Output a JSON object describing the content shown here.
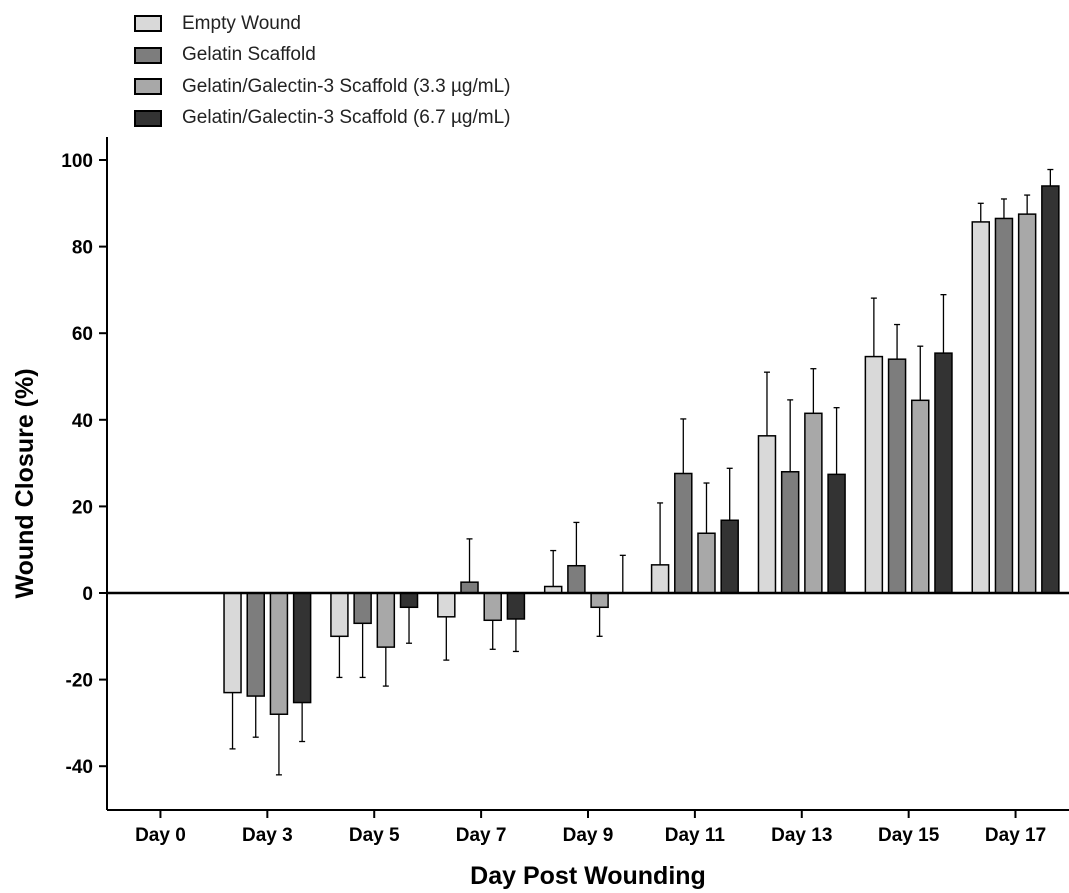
{
  "chart_data": {
    "type": "bar",
    "xlabel": "Day Post Wounding",
    "ylabel": "Wound Closure (%)",
    "ylim": [
      -50,
      105
    ],
    "yticks": [
      -40,
      -20,
      0,
      20,
      40,
      60,
      80,
      100
    ],
    "categories": [
      "Day 0",
      "Day 3",
      "Day 5",
      "Day 7",
      "Day 9",
      "Day 11",
      "Day 13",
      "Day 15",
      "Day 17"
    ],
    "legend_position": "top-left",
    "error_bars": true,
    "series": [
      {
        "name": "Empty Wound",
        "color": "#d9d9d9",
        "values": [
          0,
          -23,
          -10,
          -5.5,
          1.5,
          6.5,
          36.3,
          54.6,
          85.7
        ],
        "errors": [
          0,
          13,
          9.5,
          10,
          8.3,
          14.3,
          14.7,
          13.5,
          4.3
        ]
      },
      {
        "name": "Gelatin Scaffold",
        "color": "#7d7d7d",
        "values": [
          0,
          -23.8,
          -7,
          2.5,
          6.3,
          27.6,
          28,
          54,
          86.5
        ],
        "errors": [
          0,
          9.5,
          12.5,
          10,
          10,
          12.6,
          16.6,
          8,
          4.5
        ]
      },
      {
        "name": "Gelatin/Galectin-3 Scaffold (3.3 µg/mL)",
        "color": "#a8a8a8",
        "values": [
          0,
          -28,
          -12.5,
          -6.3,
          -3.3,
          13.8,
          41.5,
          44.5,
          87.5
        ],
        "errors": [
          0,
          14,
          9,
          6.7,
          6.7,
          11.6,
          10.3,
          12.5,
          4.4
        ]
      },
      {
        "name": "Gelatin/Galectin-3 Scaffold (6.7 µg/mL)",
        "color": "#333333",
        "values": [
          0,
          -25.3,
          -3.3,
          -6,
          0,
          16.8,
          27.4,
          55.4,
          94
        ],
        "errors": [
          0,
          9,
          8.3,
          7.5,
          8.7,
          12,
          15.4,
          13.5,
          3.8
        ]
      }
    ]
  }
}
